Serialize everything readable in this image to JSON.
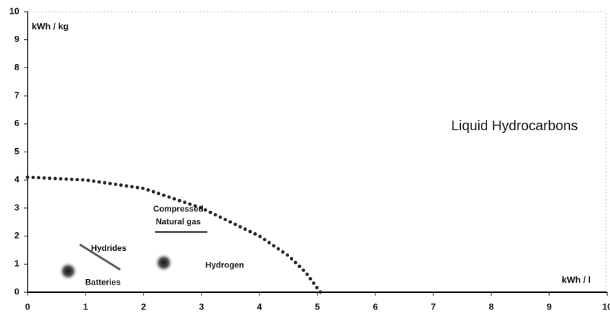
{
  "chart_data": {
    "type": "scatter",
    "xlim": [
      0,
      10
    ],
    "ylim": [
      0,
      10
    ],
    "xticks": [
      0,
      1,
      2,
      3,
      4,
      5,
      6,
      7,
      8,
      9,
      10
    ],
    "yticks": [
      0,
      1,
      2,
      3,
      4,
      5,
      6,
      7,
      8,
      9,
      10
    ],
    "x_label": "kWh / l",
    "y_label": "kWh / kg",
    "color": "#222222",
    "x": [
      0.7,
      2.35
    ],
    "values": [
      0.75,
      1.05
    ],
    "segments": [
      {
        "x": [
          0.9,
          1.6
        ],
        "y": [
          1.7,
          0.8
        ]
      },
      {
        "x": [
          2.2,
          3.1
        ],
        "y": [
          2.15,
          2.15
        ]
      }
    ],
    "boundary": {
      "x": [
        0,
        1,
        2,
        3,
        4,
        4.5,
        4.8,
        5.05
      ],
      "y": [
        4.1,
        4.0,
        3.7,
        3.0,
        2.0,
        1.3,
        0.7,
        0
      ]
    },
    "annotations": [
      {
        "text": "Liquid Hydrocarbons",
        "x": 8.4,
        "y": 5.9
      },
      {
        "text": "Compressed",
        "x": 2.6,
        "y": 2.95
      },
      {
        "text": "Natural gas",
        "x": 2.6,
        "y": 2.5
      },
      {
        "text": "Hydrides",
        "x": 1.4,
        "y": 1.55
      },
      {
        "text": "Hydrogen",
        "x": 3.4,
        "y": 0.95
      },
      {
        "text": "Batteries",
        "x": 1.3,
        "y": 0.33
      }
    ]
  }
}
